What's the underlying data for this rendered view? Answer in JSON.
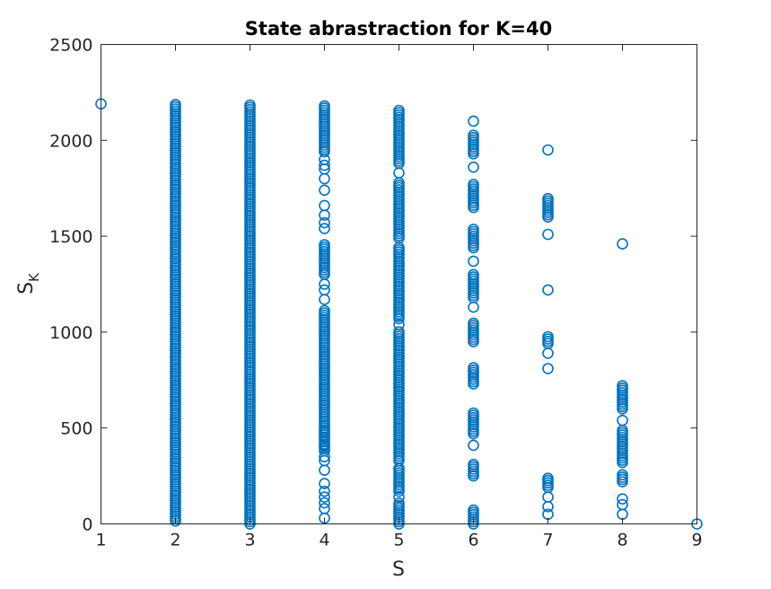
{
  "chart_data": {
    "type": "scatter",
    "title": "State abrastraction for K=40",
    "xlabel": "S",
    "ylabel": {
      "base": "S",
      "sub": "K"
    },
    "xlim": [
      1,
      9
    ],
    "ylim": [
      0,
      2500
    ],
    "xticks": [
      1,
      2,
      3,
      4,
      5,
      6,
      7,
      8,
      9
    ],
    "yticks": [
      0,
      500,
      1000,
      1500,
      2000,
      2500
    ],
    "grid": false,
    "marker": "circle-open",
    "color": "#0072BD",
    "series": [
      {
        "points": [
          {
            "x": 1,
            "y": 2190
          },
          {
            "x": 9,
            "y": 0
          }
        ],
        "columns": [
          {
            "x": 2,
            "dense_ranges": [
              [
                15,
                2190
              ]
            ],
            "y": []
          },
          {
            "x": 3,
            "dense_ranges": [
              [
                0,
                2190
              ]
            ],
            "y": []
          },
          {
            "x": 4,
            "dense_ranges": [
              [
                380,
                1120
              ],
              [
                1300,
                1460
              ],
              [
                1940,
                2180
              ]
            ],
            "y": [
              30,
              80,
              110,
              140,
              170,
              210,
              280,
              330,
              350,
              410,
              450,
              480,
              1170,
              1220,
              1250,
              1540,
              1570,
              1610,
              1660,
              1740,
              1800,
              1850,
              1870,
              1900
            ]
          },
          {
            "x": 5,
            "dense_ranges": [
              [
                0,
                110
              ],
              [
                170,
                290
              ],
              [
                330,
                1010
              ],
              [
                1070,
                1450
              ],
              [
                1490,
                1780
              ],
              [
                1880,
                2160
              ]
            ],
            "y": [
              140,
              1040,
              1830
            ]
          },
          {
            "x": 6,
            "dense_ranges": [
              [
                0,
                80
              ],
              [
                250,
                320
              ],
              [
                470,
                580
              ],
              [
                730,
                820
              ],
              [
                950,
                1050
              ],
              [
                1180,
                1300
              ],
              [
                1440,
                1540
              ],
              [
                1650,
                1780
              ],
              [
                1930,
                2030
              ]
            ],
            "y": [
              410,
              1130,
              1370,
              1860,
              2100
            ]
          },
          {
            "x": 7,
            "dense_ranges": [
              [
                190,
                240
              ],
              [
                940,
                980
              ],
              [
                1600,
                1700
              ]
            ],
            "y": [
              50,
              90,
              140,
              810,
              890,
              1220,
              1510,
              1950
            ]
          },
          {
            "x": 8,
            "dense_ranges": [
              [
                220,
                260
              ],
              [
                320,
                490
              ],
              [
                600,
                730
              ]
            ],
            "y": [
              50,
              100,
              130,
              540,
              1460
            ]
          }
        ]
      }
    ]
  }
}
